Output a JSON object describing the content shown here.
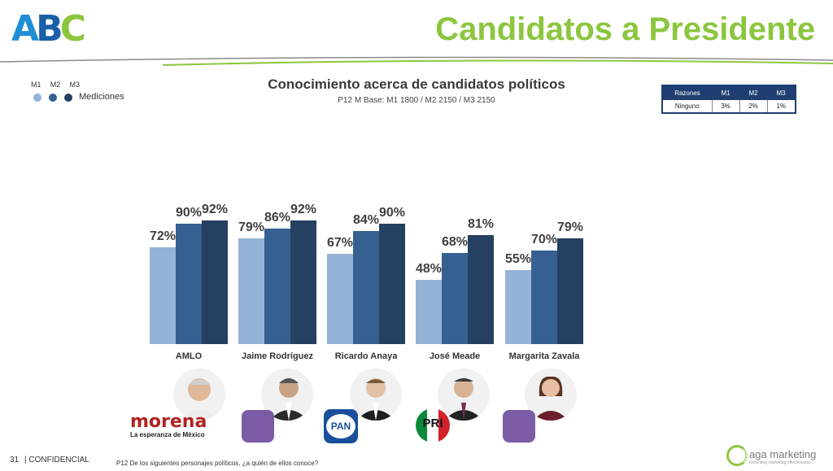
{
  "header": {
    "logo_letters": [
      "A",
      "B",
      "C"
    ],
    "title": "Candidatos a Presidente"
  },
  "legend": {
    "items": [
      "M1",
      "M2",
      "M3"
    ],
    "label": "Mediciones",
    "colors": [
      "#95b3d7",
      "#366092",
      "#254061"
    ]
  },
  "razones_table": {
    "headers": [
      "Razones",
      "M1",
      "M2",
      "M3"
    ],
    "row": [
      "Ninguno",
      "3%",
      "2%",
      "1%"
    ]
  },
  "party_logos": {
    "morena_name": "morena",
    "morena_tagline": "La esperanza de México",
    "pan": "PAN",
    "pri": "PRI"
  },
  "footer": {
    "page": "31",
    "confidential": "| CONFIDENCIAL",
    "question": "P12 De los siguientes personajes políticos, ¿a quién de ellos conoce?",
    "brand": "aga marketing",
    "brand_tagline": "fomenting marketing effectiveness"
  },
  "chart_data": {
    "type": "bar",
    "title": "Conocimiento acerca de candidatos políticos",
    "subtitle": "P12 M Base: M1 1800 / M2 2150 / M3 2150",
    "categories": [
      "AMLO",
      "Jaime Rodríguez",
      "Ricardo Anaya",
      "José Meade",
      "Margarita Zavala"
    ],
    "series": [
      {
        "name": "M1",
        "color": "#95b3d7",
        "values": [
          72,
          79,
          67,
          48,
          55
        ]
      },
      {
        "name": "M2",
        "color": "#366092",
        "values": [
          90,
          86,
          84,
          68,
          70
        ]
      },
      {
        "name": "M3",
        "color": "#254061",
        "values": [
          92,
          92,
          90,
          81,
          79
        ]
      }
    ],
    "value_suffix": "%",
    "ylim": [
      0,
      100
    ]
  }
}
